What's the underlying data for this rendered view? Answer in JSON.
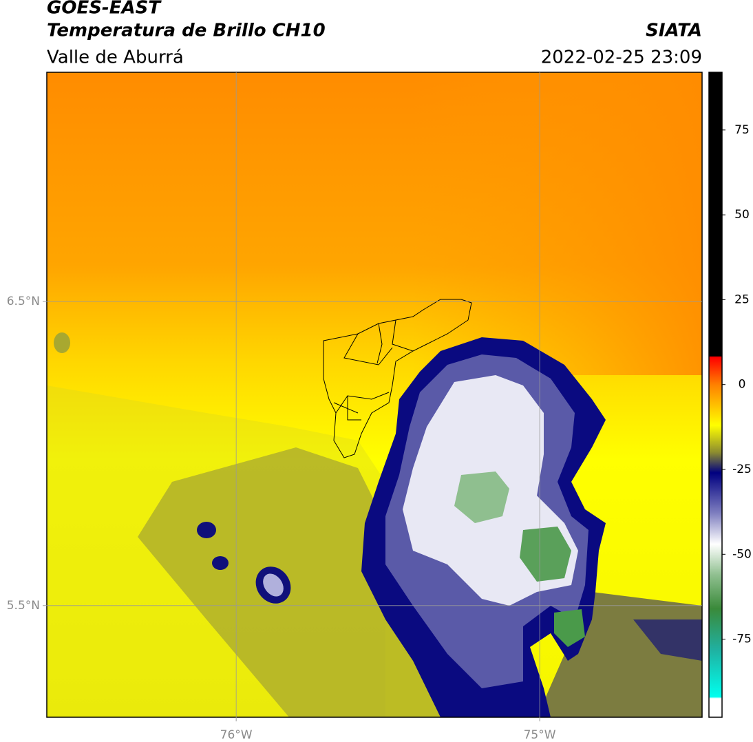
{
  "header": {
    "title": "GOES-EAST",
    "subtitle": "Temperatura de Brillo CH10",
    "region": "Valle de Aburrá",
    "source": "SIATA",
    "datetime": "2022-02-25 23:09"
  },
  "chart_data": {
    "type": "map",
    "xlim": [
      -76.624,
      -74.465
    ],
    "ylim": [
      5.133,
      7.253
    ],
    "xticks": [
      {
        "value": -76,
        "label": "76°W"
      },
      {
        "value": -75,
        "label": "75°W"
      }
    ],
    "yticks": [
      {
        "value": 6.5,
        "label": "6.5°N"
      },
      {
        "value": 5.5,
        "label": "5.5°N"
      }
    ],
    "grid": true,
    "colorbar": {
      "lim": [
        -98,
        92
      ],
      "ticks": [
        75,
        50,
        25,
        0,
        -25,
        -50,
        -75
      ],
      "stops": [
        {
          "value": 92,
          "color": "#000000"
        },
        {
          "value": 8.5,
          "color": "#000000"
        },
        {
          "value": 8,
          "color": "#ff0000"
        },
        {
          "value": 0,
          "color": "#ff8000"
        },
        {
          "value": -12,
          "color": "#ffff00"
        },
        {
          "value": -20,
          "color": "#8c8c30"
        },
        {
          "value": -26,
          "color": "#000080"
        },
        {
          "value": -38,
          "color": "#8080c0"
        },
        {
          "value": -47,
          "color": "#ffffff"
        },
        {
          "value": -56,
          "color": "#90c090"
        },
        {
          "value": -66,
          "color": "#3a8a3a"
        },
        {
          "value": -78,
          "color": "#20b0a0"
        },
        {
          "value": -92,
          "color": "#00ffee"
        },
        {
          "value": -92.5,
          "color": "#ffffff"
        },
        {
          "value": -98,
          "color": "#ffffff"
        }
      ]
    }
  }
}
